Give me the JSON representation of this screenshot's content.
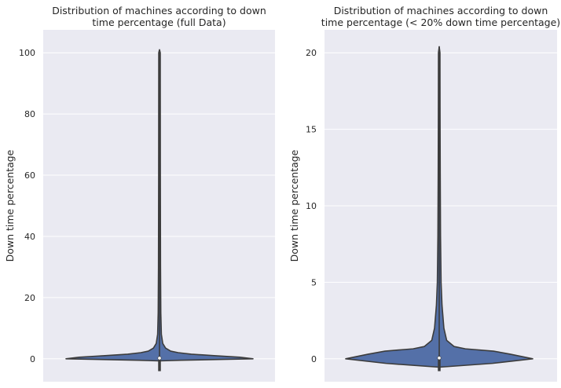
{
  "chart_data": [
    {
      "type": "violin",
      "title_line1": "Distribution of machines according to down",
      "title_line2": "time percentage (full Data)",
      "xlabel": "",
      "ylabel": "Down time percentage",
      "ylim": [
        -7.5,
        107.5
      ],
      "yticks": [
        0,
        20,
        40,
        60,
        80,
        100
      ],
      "ytick_labels": [
        "0",
        "20",
        "40",
        "60",
        "80",
        "100"
      ],
      "grid": true,
      "color": "#5470a8",
      "median": 0.2,
      "data_range": [
        0.0,
        101.0
      ],
      "density_profile": [
        {
          "y": -0.7,
          "half_width": 0.0
        },
        {
          "y": -0.5,
          "half_width": 0.22
        },
        {
          "y": 0.0,
          "half_width": 1.0
        },
        {
          "y": 0.5,
          "half_width": 0.86
        },
        {
          "y": 1.0,
          "half_width": 0.6
        },
        {
          "y": 1.5,
          "half_width": 0.34
        },
        {
          "y": 2.0,
          "half_width": 0.2
        },
        {
          "y": 2.5,
          "half_width": 0.12
        },
        {
          "y": 3.5,
          "half_width": 0.065
        },
        {
          "y": 5.0,
          "half_width": 0.035
        },
        {
          "y": 8.0,
          "half_width": 0.02
        },
        {
          "y": 15.0,
          "half_width": 0.014
        },
        {
          "y": 30.0,
          "half_width": 0.011
        },
        {
          "y": 60.0,
          "half_width": 0.009
        },
        {
          "y": 100.0,
          "half_width": 0.008
        },
        {
          "y": 101.0,
          "half_width": 0.0
        }
      ]
    },
    {
      "type": "violin",
      "title_line1": "Distribution of machines according to down",
      "title_line2": "time percentage (< 20% down time percentage)",
      "xlabel": "",
      "ylabel": "Down time percentage",
      "ylim": [
        -1.5,
        21.5
      ],
      "yticks": [
        0,
        5,
        10,
        15,
        20
      ],
      "ytick_labels": [
        "0",
        "5",
        "10",
        "15",
        "20"
      ],
      "grid": true,
      "color": "#5470a8",
      "median": 0.05,
      "data_range": [
        0.0,
        20.4
      ],
      "density_profile": [
        {
          "y": -0.55,
          "half_width": 0.0
        },
        {
          "y": -0.3,
          "half_width": 0.57
        },
        {
          "y": 0.0,
          "half_width": 1.0
        },
        {
          "y": 0.3,
          "half_width": 0.76
        },
        {
          "y": 0.5,
          "half_width": 0.58
        },
        {
          "y": 0.65,
          "half_width": 0.28
        },
        {
          "y": 0.8,
          "half_width": 0.16
        },
        {
          "y": 1.2,
          "half_width": 0.08
        },
        {
          "y": 2.0,
          "half_width": 0.05
        },
        {
          "y": 3.5,
          "half_width": 0.03
        },
        {
          "y": 5.0,
          "half_width": 0.02
        },
        {
          "y": 8.0,
          "half_width": 0.014
        },
        {
          "y": 12.0,
          "half_width": 0.011
        },
        {
          "y": 16.0,
          "half_width": 0.009
        },
        {
          "y": 20.0,
          "half_width": 0.008
        },
        {
          "y": 20.4,
          "half_width": 0.0
        }
      ]
    }
  ]
}
